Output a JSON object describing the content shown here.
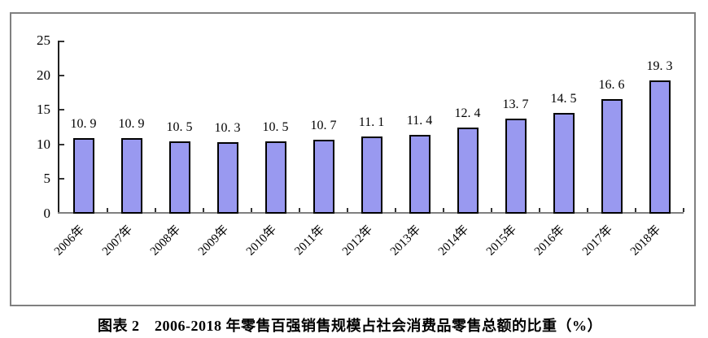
{
  "figure": {
    "caption": "图表 2　2006-2018 年零售百强销售规模占社会消费品零售总额的比重（%）"
  },
  "chart_data": {
    "type": "bar",
    "title": "图表 2　2006-2018 年零售百强销售规模占社会消费品零售总额的比重（%）",
    "categories": [
      "2006年",
      "2007年",
      "2008年",
      "2009年",
      "2010年",
      "2011年",
      "2012年",
      "2013年",
      "2014年",
      "2015年",
      "2016年",
      "2017年",
      "2018年"
    ],
    "values": [
      10.9,
      10.9,
      10.5,
      10.3,
      10.5,
      10.7,
      11.1,
      11.4,
      12.4,
      13.7,
      14.5,
      16.6,
      19.3
    ],
    "value_labels": [
      "10. 9",
      "10. 9",
      "10. 5",
      "10. 3",
      "10. 5",
      "10. 7",
      "11. 1",
      "11. 4",
      "12. 4",
      "13. 7",
      "14. 5",
      "16. 6",
      "19. 3"
    ],
    "xlabel": "",
    "ylabel": "",
    "ylim": [
      0,
      25
    ],
    "ytick_step": 5,
    "ytick_labels": [
      "0",
      "5",
      "10",
      "15",
      "20",
      "25"
    ],
    "grid": false,
    "legend": null,
    "colors": {
      "bar_fill": "#9999F0",
      "bar_border": "#000000",
      "y_axis": "#1f1f1f",
      "x_axis": "#808080",
      "tick": "#333333",
      "frame_border": "#808080",
      "text": "#000000"
    }
  }
}
